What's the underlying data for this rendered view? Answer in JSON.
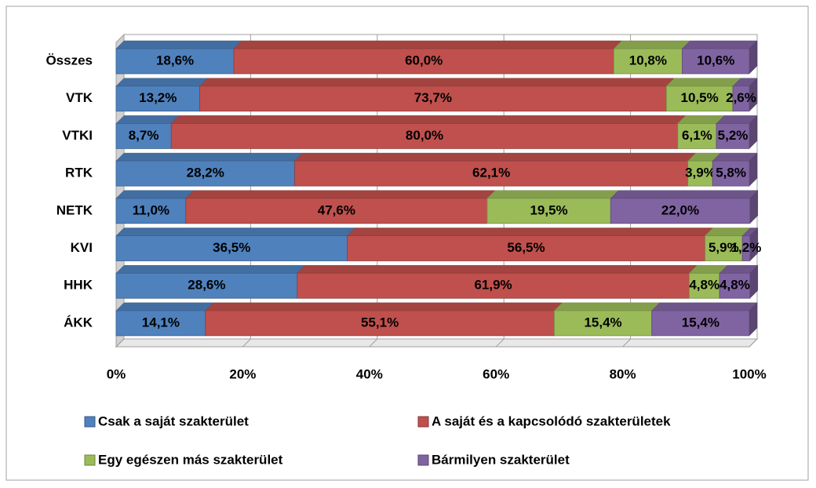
{
  "chart_data": {
    "type": "stacked_bar_horizontal",
    "categories": [
      "Összes",
      "VTK",
      "VTKI",
      "RTK",
      "NETK",
      "KVI",
      "HHK",
      "ÁKK"
    ],
    "series": [
      {
        "name": "Csak a saját szakterület",
        "color": "#4f81bd",
        "values": [
          18.6,
          13.2,
          8.7,
          28.2,
          11.0,
          36.5,
          28.6,
          14.1
        ],
        "value_labels": [
          "18,6%",
          "13,2%",
          "8,7%",
          "28,2%",
          "11,0%",
          "36,5%",
          "28,6%",
          "14,1%"
        ]
      },
      {
        "name": "A saját és a kapcsolódó szakterületek",
        "color": "#c0504d",
        "values": [
          60.0,
          73.7,
          80.0,
          62.1,
          47.6,
          56.5,
          61.9,
          55.1
        ],
        "value_labels": [
          "60,0%",
          "73,7%",
          "80,0%",
          "62,1%",
          "47,6%",
          "56,5%",
          "61,9%",
          "55,1%"
        ]
      },
      {
        "name": "Egy egészen más szakterület",
        "color": "#9bbb59",
        "values": [
          10.8,
          10.5,
          6.1,
          3.9,
          19.5,
          5.9,
          4.8,
          15.4
        ],
        "value_labels": [
          "10,8%",
          "10,5%",
          "6,1%",
          "3,9%",
          "19,5%",
          "5,9%",
          "4,8%",
          "15,4%"
        ]
      },
      {
        "name": "Bármilyen szakterület",
        "color": "#8064a2",
        "values": [
          10.6,
          2.6,
          5.2,
          5.8,
          22.0,
          1.2,
          4.8,
          15.4
        ],
        "value_labels": [
          "10,6%",
          "2,6%",
          "5,2%",
          "5,8%",
          "22,0%",
          "1,2%",
          "4,8%",
          "15,4%"
        ]
      }
    ],
    "xlim": [
      0,
      100
    ],
    "xticks": [
      {
        "value": 0,
        "label": "0%"
      },
      {
        "value": 20,
        "label": "20%"
      },
      {
        "value": 40,
        "label": "40%"
      },
      {
        "value": 60,
        "label": "60%"
      },
      {
        "value": 80,
        "label": "80%"
      },
      {
        "value": 100,
        "label": "100%"
      }
    ],
    "grid": true
  }
}
